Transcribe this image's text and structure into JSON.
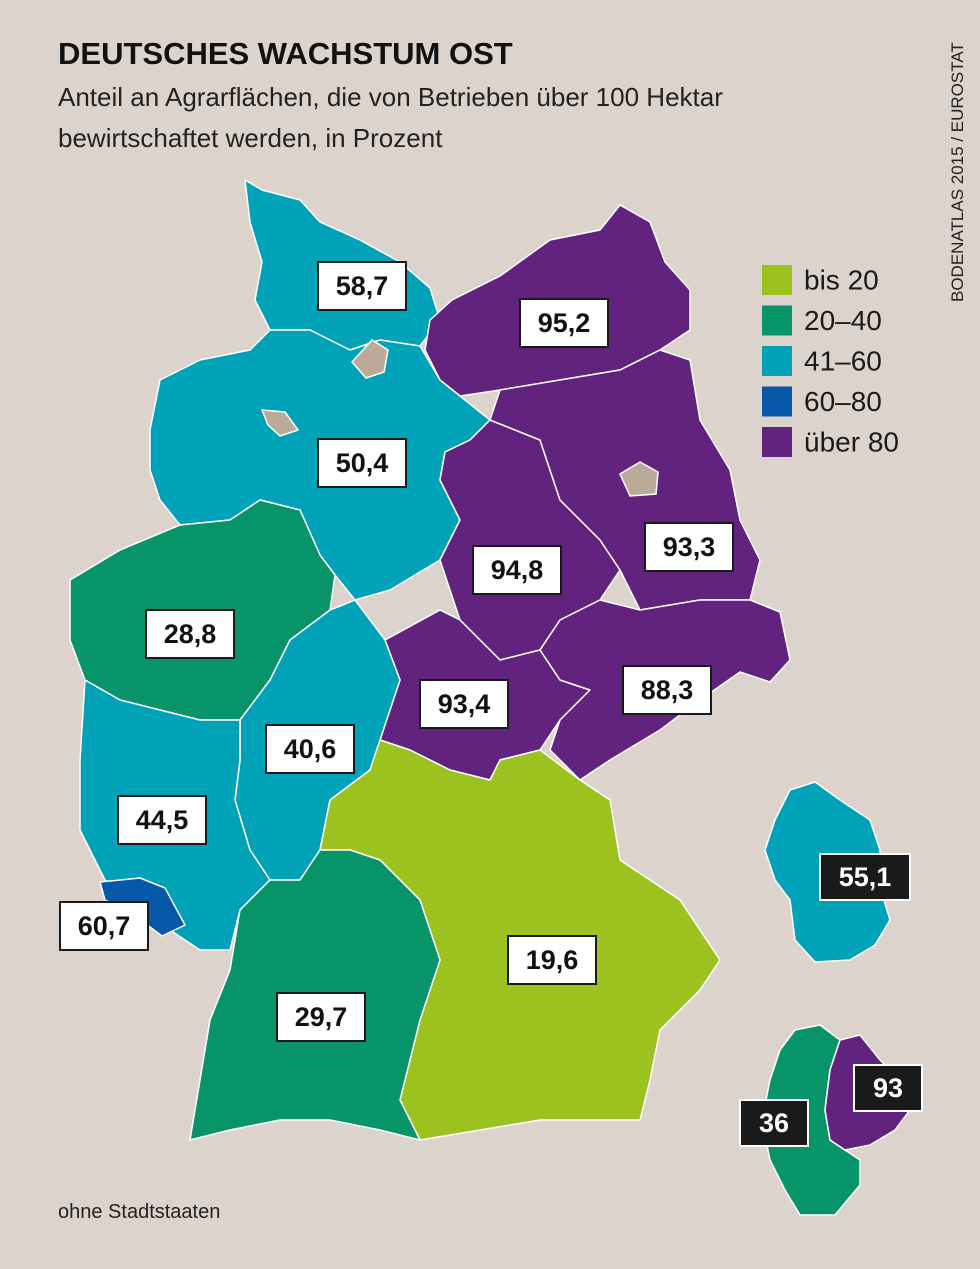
{
  "title": "DEUTSCHES WACHSTUM OST",
  "subtitle": [
    "Anteil an Agrarflächen, die von Betrieben über 100 Hektar",
    "bewirtschaftet werden, in Prozent"
  ],
  "source": "BODENATLAS 2015 / EUROSTAT",
  "note": "ohne Stadtstaaten",
  "legend": [
    {
      "label": "bis 20",
      "color": "#9bc21f"
    },
    {
      "label": "20–40",
      "color": "#079469"
    },
    {
      "label": "41–60",
      "color": "#00a2b8"
    },
    {
      "label": "60–80",
      "color": "#0758a8"
    },
    {
      "label": "über 80",
      "color": "#62237f"
    }
  ],
  "regions": [
    {
      "label": "58,7",
      "color": "#00a2b8"
    },
    {
      "label": "95,2",
      "color": "#62237f"
    },
    {
      "label": "50,4",
      "color": "#00a2b8"
    },
    {
      "label": "28,8",
      "color": "#079469"
    },
    {
      "label": "94,8",
      "color": "#62237f"
    },
    {
      "label": "93,3",
      "color": "#62237f"
    },
    {
      "label": "93,4",
      "color": "#62237f"
    },
    {
      "label": "88,3",
      "color": "#62237f"
    },
    {
      "label": "40,6",
      "color": "#00a2b8"
    },
    {
      "label": "44,5",
      "color": "#00a2b8"
    },
    {
      "label": "60,7",
      "color": "#0758a8"
    },
    {
      "label": "19,6",
      "color": "#9bc21f"
    },
    {
      "label": "29,7",
      "color": "#079469"
    }
  ],
  "inset_germany": {
    "label": "55,1",
    "color": "#00a2b8"
  },
  "inset_split": [
    {
      "label": "36",
      "color": "#079469"
    },
    {
      "label": "93",
      "color": "#62237f"
    }
  ]
}
